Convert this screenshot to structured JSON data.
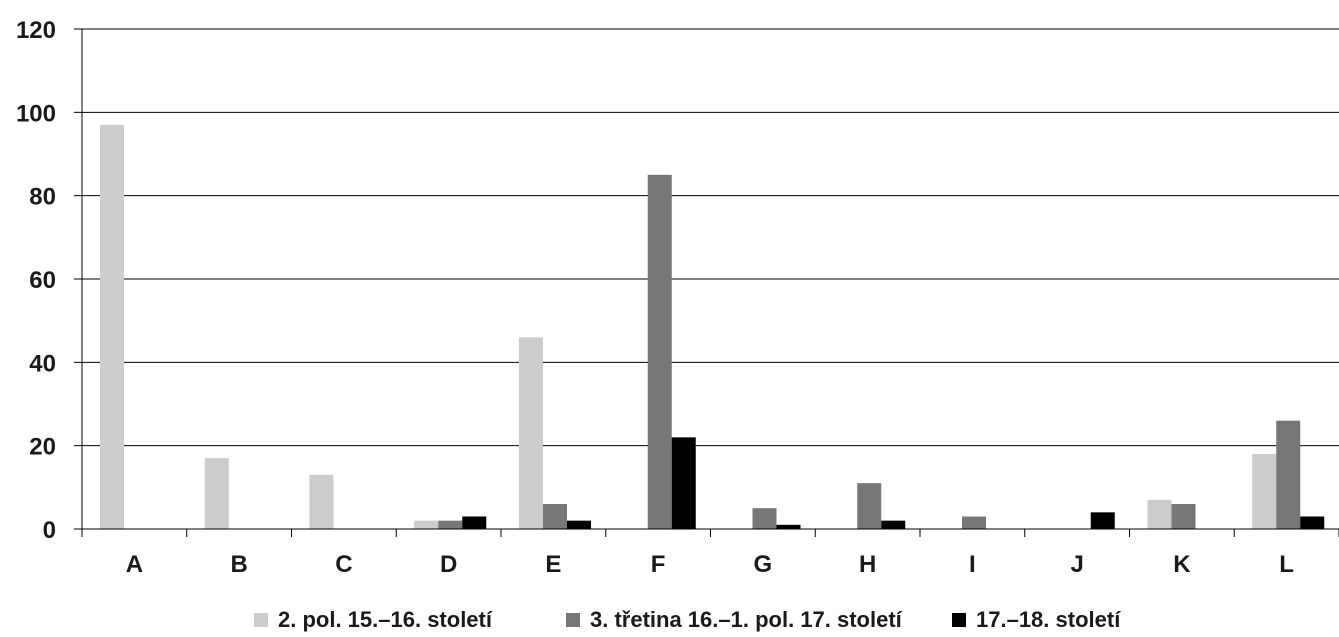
{
  "chart_data": {
    "type": "bar",
    "categories": [
      "A",
      "B",
      "C",
      "D",
      "E",
      "F",
      "G",
      "H",
      "I",
      "J",
      "K",
      "L"
    ],
    "series": [
      {
        "name": "2. pol. 15.–16. století",
        "color": "#cccccc",
        "values": [
          97,
          17,
          13,
          2,
          46,
          0,
          0,
          0,
          0,
          0,
          7,
          18
        ]
      },
      {
        "name": "3. třetina 16.–1. pol. 17. století",
        "color": "#777777",
        "values": [
          0,
          0,
          0,
          2,
          6,
          85,
          5,
          11,
          3,
          0,
          6,
          26
        ]
      },
      {
        "name": "17.–18. století",
        "color": "#000000",
        "values": [
          0,
          0,
          0,
          3,
          2,
          22,
          1,
          2,
          0,
          4,
          0,
          3
        ]
      }
    ],
    "ylim": [
      0,
      120
    ],
    "yticks": [
      0,
      20,
      40,
      60,
      80,
      100,
      120
    ],
    "grid": true,
    "legend": "bottom"
  }
}
